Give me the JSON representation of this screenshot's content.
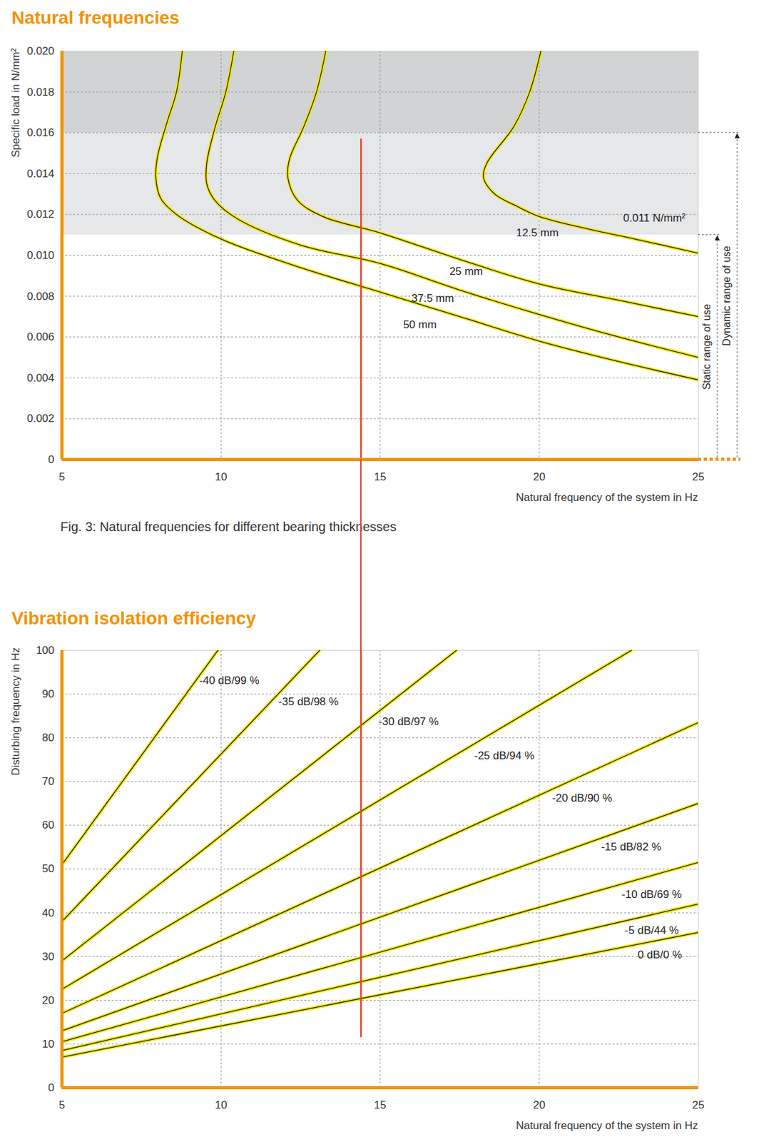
{
  "chart_data": [
    {
      "type": "line",
      "title": "Natural frequencies",
      "caption": "Fig. 3: Natural frequencies for different bearing thicknesses",
      "x_label": "Natural frequency of the system in Hz",
      "y_label": "Specific load in N/mm²",
      "xlim": [
        5,
        25
      ],
      "xticks": [
        5,
        10,
        15,
        20,
        25
      ],
      "ylim": [
        0,
        0.02
      ],
      "yticks": [
        0,
        0.002,
        0.004,
        0.006,
        0.008,
        {
          "value": 0.01,
          "label": "0.010"
        },
        0.012,
        0.014,
        0.016,
        0.018,
        {
          "value": 0.02,
          "label": "0.020"
        }
      ],
      "grid": true,
      "series": [
        {
          "name": "12.5 mm",
          "color": "#f2e600",
          "x": [
            20.05,
            19.7,
            19.2,
            18.35,
            18.25,
            18.6,
            19.3,
            20,
            21.5,
            23,
            25
          ],
          "values": [
            0.02,
            0.018,
            0.0163,
            0.0145,
            0.0138,
            0.013,
            0.0124,
            0.0119,
            0.0113,
            0.0108,
            0.0101
          ]
        },
        {
          "name": "25 mm",
          "color": "#f2e600",
          "x": [
            13.29,
            13,
            12.6,
            12.15,
            12.1,
            12.4,
            13.2,
            15,
            17.5,
            20,
            22.5,
            25
          ],
          "values": [
            0.02,
            0.018,
            0.0163,
            0.0147,
            0.0138,
            0.0127,
            0.0119,
            0.0111,
            0.0098,
            0.0086,
            0.0078,
            0.007
          ]
        },
        {
          "name": "37.5 mm",
          "color": "#f2e600",
          "x": [
            10.4,
            10.15,
            9.8,
            9.55,
            9.55,
            9.8,
            10.5,
            12.5,
            15,
            17.5,
            20,
            22.5,
            25
          ],
          "values": [
            0.02,
            0.018,
            0.0162,
            0.0145,
            0.0135,
            0.0127,
            0.0118,
            0.0105,
            0.0096,
            0.0083,
            0.0071,
            0.006,
            0.005
          ]
        },
        {
          "name": "50 mm",
          "color": "#f2e600",
          "x": [
            8.78,
            8.6,
            8.3,
            8,
            7.95,
            8.1,
            8.6,
            10,
            12.5,
            15,
            17.5,
            20,
            22.5,
            25
          ],
          "values": [
            0.02,
            0.018,
            0.0165,
            0.0148,
            0.0138,
            0.0128,
            0.012,
            0.0108,
            0.0094,
            0.0082,
            0.007,
            0.0058,
            0.0048,
            0.0039
          ]
        }
      ],
      "bands": [
        {
          "y1": 0.011,
          "y2": 0.016,
          "color": "#e6e7e8"
        },
        {
          "y1": 0.016,
          "y2": 0.02,
          "color": "#d1d3d4"
        }
      ],
      "ranges": [
        {
          "label": "Static range of use",
          "y1": 0,
          "y2": 0.011
        },
        {
          "label": "Dynamic range of use",
          "y1": 0,
          "y2": 0.016
        }
      ],
      "range_value_label": "0.011 N/mm²",
      "reference_line": {
        "x": 14.4,
        "y1": 0.0157,
        "y2": 0,
        "color": "#e8432d"
      }
    },
    {
      "type": "line",
      "title": "Vibration isolation efficiency",
      "x_label": "Natural frequency of the system in Hz",
      "y_label": "Disturbing frequency in Hz",
      "xlim": [
        5,
        25
      ],
      "xticks": [
        5,
        10,
        15,
        20,
        25
      ],
      "ylim": [
        0,
        100
      ],
      "yticks": [
        0,
        10,
        20,
        30,
        40,
        50,
        60,
        70,
        80,
        90,
        100
      ],
      "grid": true,
      "series": [
        {
          "name": "-40 dB/99 %",
          "color": "#f2e600",
          "x": [
            5,
            9.9
          ],
          "values": [
            51,
            100
          ]
        },
        {
          "name": "-35 dB/98 %",
          "color": "#f2e600",
          "x": [
            5,
            13.1
          ],
          "values": [
            38,
            100
          ]
        },
        {
          "name": "-30 dB/97 %",
          "color": "#f2e600",
          "x": [
            5,
            17.4
          ],
          "values": [
            29,
            100
          ]
        },
        {
          "name": "-25 dB/94 %",
          "color": "#f2e600",
          "x": [
            5,
            22.9
          ],
          "values": [
            22.5,
            100
          ]
        },
        {
          "name": "-20 dB/90 %",
          "color": "#f2e600",
          "x": [
            5,
            25
          ],
          "values": [
            17,
            83.5
          ]
        },
        {
          "name": "-15 dB/82 %",
          "color": "#f2e600",
          "x": [
            5,
            25
          ],
          "values": [
            13,
            65
          ]
        },
        {
          "name": "-10 dB/69 %",
          "color": "#f2e600",
          "x": [
            5,
            25
          ],
          "values": [
            10.5,
            51.5
          ]
        },
        {
          "name": "-5 dB/44 %",
          "color": "#f2e600",
          "x": [
            5,
            25
          ],
          "values": [
            8.5,
            42
          ]
        },
        {
          "name": "0 dB/0 %",
          "color": "#f2e600",
          "x": [
            5,
            25
          ],
          "values": [
            7,
            35.5
          ]
        }
      ],
      "reference_line": {
        "x": 14.4,
        "y1": 100,
        "y2": 11.5,
        "color": "#e8432d"
      }
    }
  ]
}
